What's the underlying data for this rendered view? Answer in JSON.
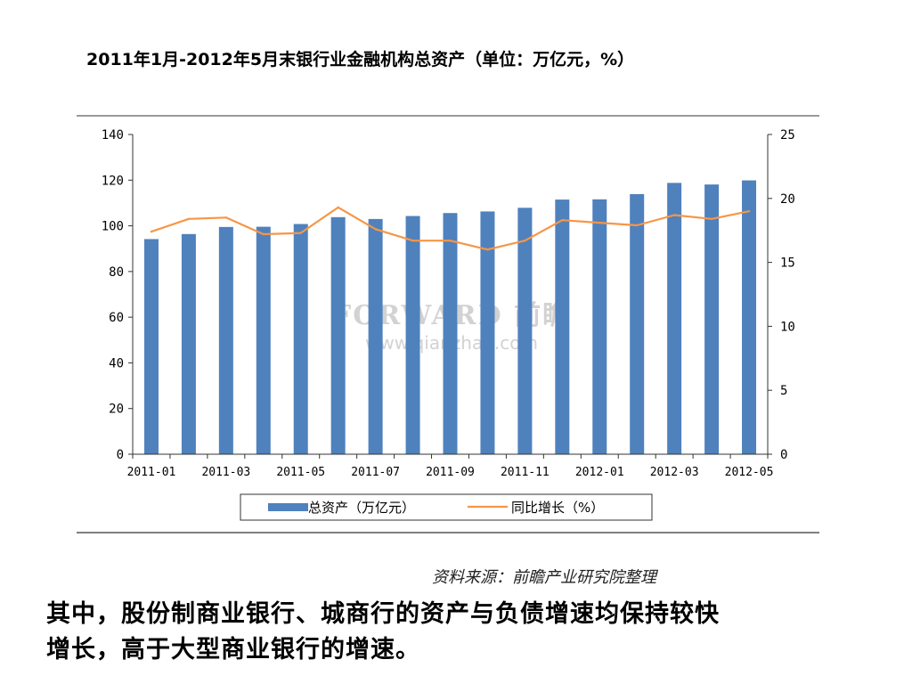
{
  "slide": {
    "title": "2011年1月-2012年5月末银行业金融机构总资产（单位：万亿元，%）",
    "source": "资料来源：前瞻产业研究院整理",
    "body_line1": "其中，股份制商业银行、城商行的资产与负债增速均保持较快",
    "body_line2": "增长，高于大型商业银行的增速。",
    "watermark_brand": "FORWARD 前瞻",
    "watermark_url": "www.qianzhan.com"
  },
  "chart_data": {
    "type": "bar",
    "categories": [
      "2011-01",
      "2011-02",
      "2011-03",
      "2011-04",
      "2011-05",
      "2011-06",
      "2011-07",
      "2011-08",
      "2011-09",
      "2011-10",
      "2011-11",
      "2011-12",
      "2012-01",
      "2012-02",
      "2012-03",
      "2012-04",
      "2012-05"
    ],
    "x_tick_labels": [
      "2011-01",
      "2011-03",
      "2011-05",
      "2011-07",
      "2011-09",
      "2011-11",
      "2012-01",
      "2012-03",
      "2012-05"
    ],
    "series": [
      {
        "name": "总资产（万亿元）",
        "type": "bar",
        "axis": "left",
        "color": "#4f81bd",
        "values": [
          94.2,
          96.4,
          99.5,
          99.6,
          100.8,
          103.8,
          103.0,
          104.3,
          105.6,
          106.3,
          107.9,
          111.5,
          111.6,
          113.9,
          118.8,
          118.1,
          119.9
        ]
      },
      {
        "name": "同比增长（%）",
        "type": "line",
        "axis": "right",
        "color": "#f79646",
        "values": [
          17.4,
          18.4,
          18.5,
          17.2,
          17.3,
          19.3,
          17.6,
          16.7,
          16.7,
          16.0,
          16.7,
          18.3,
          18.1,
          17.9,
          18.7,
          18.4,
          19.0
        ]
      }
    ],
    "y_left": {
      "range": [
        0,
        140
      ],
      "ticks": [
        "0",
        "20",
        "40",
        "60",
        "80",
        "100",
        "120",
        "140"
      ]
    },
    "y_right": {
      "range": [
        0,
        25
      ],
      "ticks": [
        "0",
        "5",
        "10",
        "15",
        "20",
        "25"
      ]
    },
    "legend_position": "bottom",
    "grid": false
  },
  "colors": {
    "bar": "#4f81bd",
    "line": "#f79646",
    "axis": "#333333"
  }
}
